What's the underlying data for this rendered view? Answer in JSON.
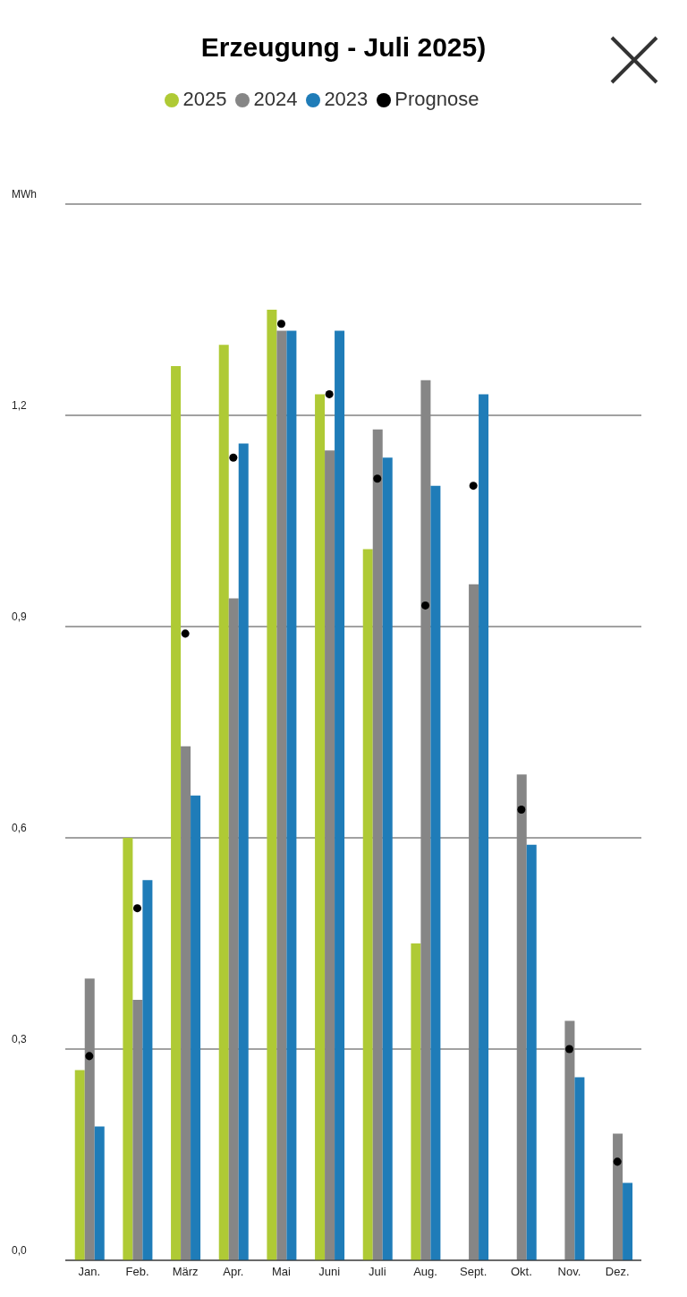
{
  "chart_data": {
    "type": "bar",
    "title": "Erzeugung - Juli 2025)",
    "categories": [
      "Jan.",
      "Feb.",
      "März",
      "Apr.",
      "Mai",
      "Juni",
      "Juli",
      "Aug.",
      "Sept.",
      "Okt.",
      "Nov.",
      "Dez."
    ],
    "series": [
      {
        "name": "2025",
        "color": "#afca35",
        "values": [
          0.27,
          0.6,
          1.27,
          1.3,
          1.35,
          1.23,
          1.01,
          0.45,
          null,
          null,
          null,
          null
        ]
      },
      {
        "name": "2024",
        "color": "#868686",
        "values": [
          0.4,
          0.37,
          0.73,
          0.94,
          1.32,
          1.15,
          1.18,
          1.25,
          0.96,
          0.69,
          0.34,
          0.18
        ]
      },
      {
        "name": "2023",
        "color": "#1f7cb8",
        "values": [
          0.19,
          0.54,
          0.66,
          1.16,
          1.32,
          1.32,
          1.14,
          1.1,
          1.23,
          0.59,
          0.26,
          0.11
        ]
      },
      {
        "name": "Prognose",
        "type": "scatter",
        "color": "#000000",
        "values": [
          0.29,
          0.5,
          0.89,
          1.14,
          1.33,
          1.23,
          1.11,
          0.93,
          1.1,
          0.64,
          0.3,
          0.14
        ]
      }
    ],
    "ylim": [
      0,
      1.5
    ],
    "yticks": [
      {
        "value": 0,
        "label": "0,0"
      },
      {
        "value": 0.3,
        "label": "0,3"
      },
      {
        "value": 0.6,
        "label": "0,6"
      },
      {
        "value": 0.9,
        "label": "0,9"
      },
      {
        "value": 1.2,
        "label": "1,2"
      },
      {
        "value": 1.5,
        "label": "MWh"
      }
    ],
    "grid": "y",
    "legend": "top"
  }
}
